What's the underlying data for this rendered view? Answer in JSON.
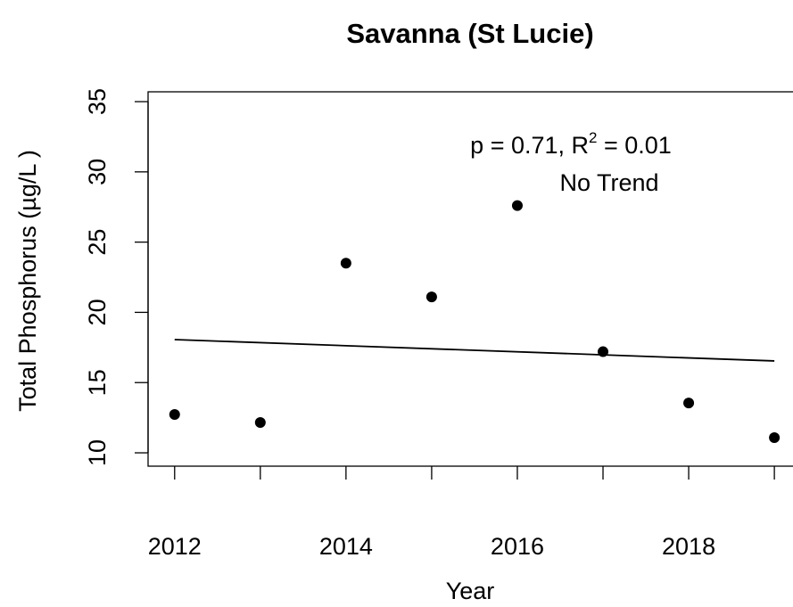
{
  "chart_data": {
    "type": "scatter",
    "title": "Savanna (St Lucie)",
    "x_label": "Year",
    "y_label": "Total Phosphorus (µg/L )",
    "x": [
      2012,
      2013,
      2014,
      2015,
      2016,
      2017,
      2018,
      2019
    ],
    "values": [
      12.73,
      12.16,
      23.5,
      21.1,
      27.6,
      17.2,
      13.55,
      11.08
    ],
    "color": "#000000",
    "trend": {
      "x": [
        2012,
        2019
      ],
      "values": [
        18.06,
        16.54
      ],
      "color": "#000000"
    },
    "annotation": [
      "p = 0.71, R",
      "2",
      " = 0.01"
    ],
    "annotation2": "No Trend",
    "xlim": [
      2011.69,
      2019.28
    ],
    "ylim": [
      9.05,
      35.7
    ],
    "xticks": [
      2012,
      2014,
      2016,
      2018
    ],
    "xminor_ticks": [
      2013,
      2015,
      2017,
      2019
    ],
    "yticks": [
      10,
      15,
      20,
      25,
      30,
      35
    ]
  }
}
